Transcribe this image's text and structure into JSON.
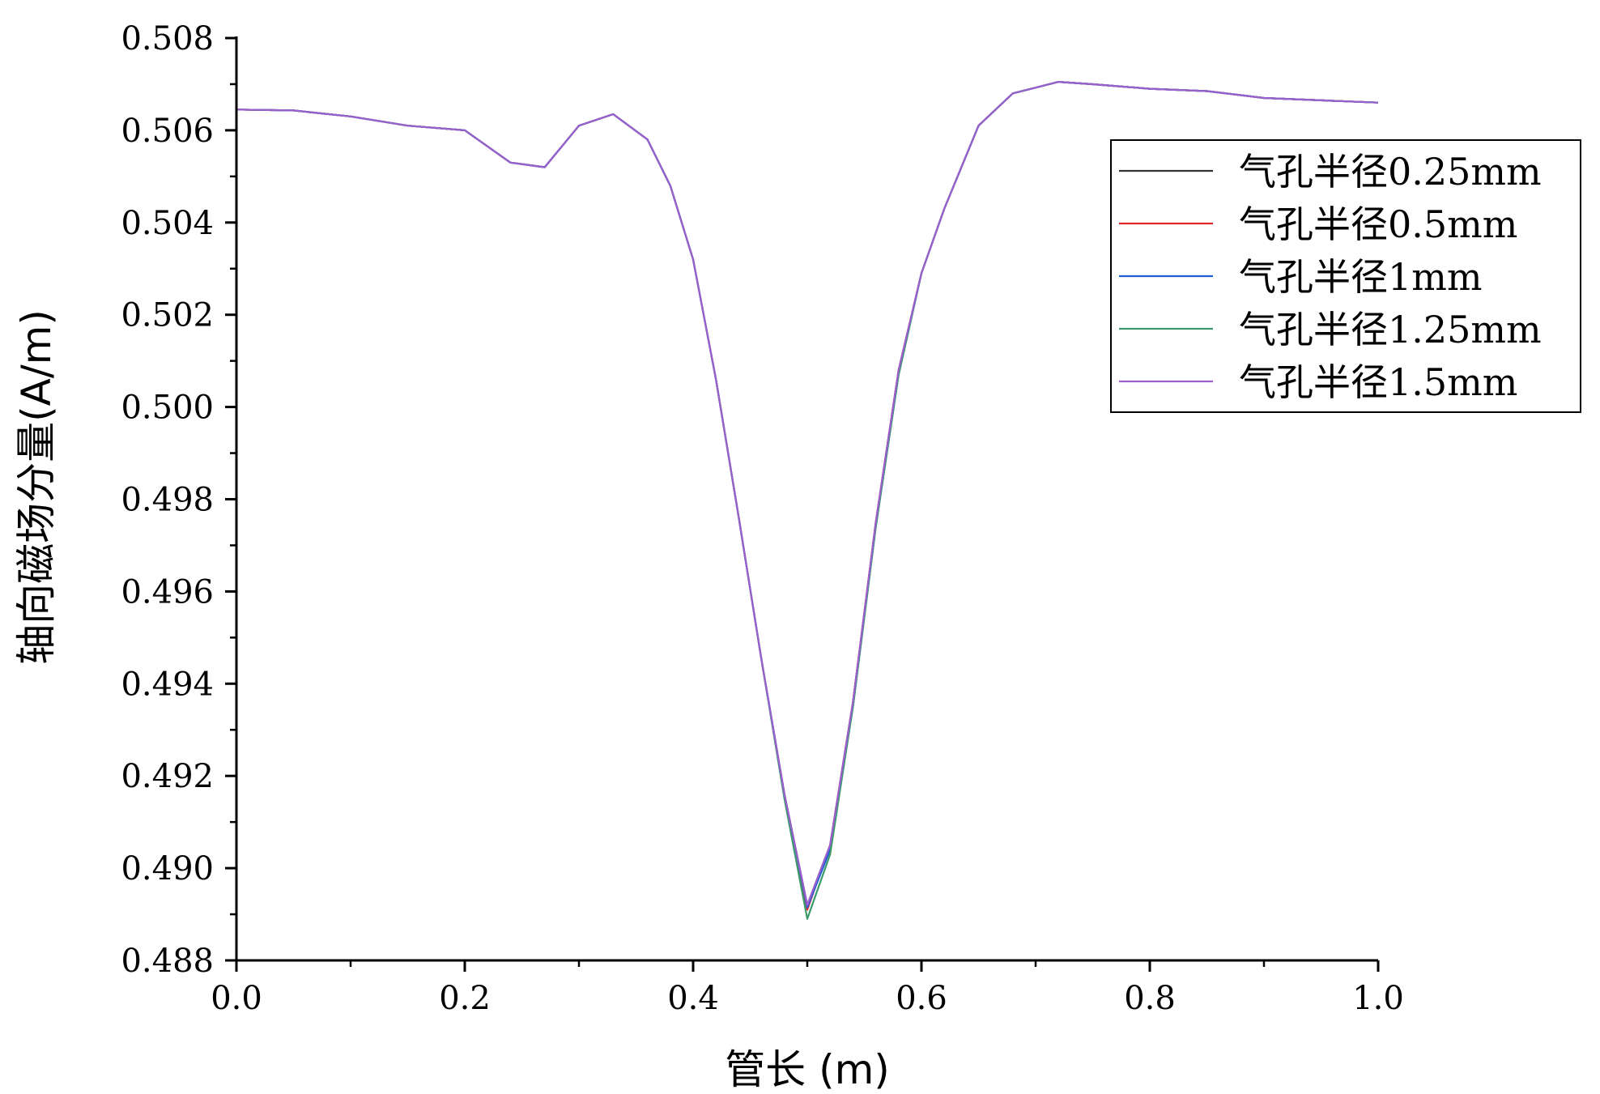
{
  "chart_data": {
    "type": "line",
    "xlabel": "管长 (m)",
    "ylabel": "轴向磁场分量(A/m)",
    "xlim": [
      0.0,
      1.0
    ],
    "ylim": [
      0.488,
      0.508
    ],
    "x_ticks": [
      "0.0",
      "0.2",
      "0.4",
      "0.6",
      "0.8",
      "1.0"
    ],
    "y_ticks": [
      "0.488",
      "0.490",
      "0.492",
      "0.494",
      "0.496",
      "0.498",
      "0.500",
      "0.502",
      "0.504",
      "0.506",
      "0.508"
    ],
    "legend_position": "top-right",
    "grid": false,
    "series": [
      {
        "name": "气孔半径0.25mm",
        "color": "#333333",
        "x": [
          0.0,
          0.05,
          0.1,
          0.15,
          0.2,
          0.24,
          0.27,
          0.3,
          0.33,
          0.36,
          0.38,
          0.4,
          0.42,
          0.44,
          0.46,
          0.48,
          0.5,
          0.52,
          0.54,
          0.56,
          0.58,
          0.6,
          0.62,
          0.65,
          0.68,
          0.72,
          0.75,
          0.8,
          0.85,
          0.9,
          0.95,
          1.0
        ],
        "y": [
          0.50645,
          0.50643,
          0.5063,
          0.5061,
          0.506,
          0.5053,
          0.5052,
          0.5061,
          0.50635,
          0.5058,
          0.5048,
          0.5032,
          0.5006,
          0.4976,
          0.4945,
          0.4916,
          0.4892,
          0.4905,
          0.4936,
          0.4975,
          0.5008,
          0.5029,
          0.5043,
          0.5061,
          0.5068,
          0.50705,
          0.507,
          0.5069,
          0.50685,
          0.5067,
          0.50665,
          0.5066
        ]
      },
      {
        "name": "气孔半径0.5mm",
        "color": "#e0262b",
        "x": [
          0.0,
          0.05,
          0.1,
          0.15,
          0.2,
          0.24,
          0.27,
          0.3,
          0.33,
          0.36,
          0.38,
          0.4,
          0.42,
          0.44,
          0.46,
          0.48,
          0.5,
          0.52,
          0.54,
          0.56,
          0.58,
          0.6,
          0.62,
          0.65,
          0.68,
          0.72,
          0.75,
          0.8,
          0.85,
          0.9,
          0.95,
          1.0
        ],
        "y": [
          0.50645,
          0.50643,
          0.5063,
          0.5061,
          0.506,
          0.5053,
          0.5052,
          0.5061,
          0.50635,
          0.5058,
          0.5048,
          0.5032,
          0.5006,
          0.4976,
          0.4945,
          0.4916,
          0.4891,
          0.4905,
          0.4936,
          0.4975,
          0.5008,
          0.5029,
          0.5043,
          0.5061,
          0.5068,
          0.50705,
          0.507,
          0.5069,
          0.50685,
          0.5067,
          0.50665,
          0.5066
        ]
      },
      {
        "name": "气孔半径1mm",
        "color": "#1f5fd6",
        "x": [
          0.0,
          0.05,
          0.1,
          0.15,
          0.2,
          0.24,
          0.27,
          0.3,
          0.33,
          0.36,
          0.38,
          0.4,
          0.42,
          0.44,
          0.46,
          0.48,
          0.5,
          0.52,
          0.54,
          0.56,
          0.58,
          0.6,
          0.62,
          0.65,
          0.68,
          0.72,
          0.75,
          0.8,
          0.85,
          0.9,
          0.95,
          1.0
        ],
        "y": [
          0.50645,
          0.50643,
          0.5063,
          0.5061,
          0.506,
          0.5053,
          0.5052,
          0.5061,
          0.50635,
          0.5058,
          0.5048,
          0.5032,
          0.5006,
          0.4976,
          0.4945,
          0.4916,
          0.48915,
          0.4904,
          0.4935,
          0.4974,
          0.5007,
          0.5029,
          0.5043,
          0.5061,
          0.5068,
          0.50705,
          0.507,
          0.5069,
          0.50685,
          0.5067,
          0.50665,
          0.5066
        ]
      },
      {
        "name": "气孔半径1.25mm",
        "color": "#3a9a6a",
        "x": [
          0.0,
          0.05,
          0.1,
          0.15,
          0.2,
          0.24,
          0.27,
          0.3,
          0.33,
          0.36,
          0.38,
          0.4,
          0.42,
          0.44,
          0.46,
          0.48,
          0.5,
          0.52,
          0.54,
          0.56,
          0.58,
          0.6,
          0.62,
          0.65,
          0.68,
          0.72,
          0.75,
          0.8,
          0.85,
          0.9,
          0.95,
          1.0
        ],
        "y": [
          0.50645,
          0.50643,
          0.5063,
          0.5061,
          0.506,
          0.5053,
          0.5052,
          0.5061,
          0.50635,
          0.5058,
          0.5048,
          0.5032,
          0.5006,
          0.4976,
          0.4945,
          0.4915,
          0.4889,
          0.4903,
          0.4935,
          0.4974,
          0.5007,
          0.5029,
          0.5043,
          0.5061,
          0.5068,
          0.50705,
          0.507,
          0.5069,
          0.50685,
          0.5067,
          0.50665,
          0.5066
        ]
      },
      {
        "name": "气孔半径1.5mm",
        "color": "#9a5fd0",
        "x": [
          0.0,
          0.05,
          0.1,
          0.15,
          0.2,
          0.24,
          0.27,
          0.3,
          0.33,
          0.36,
          0.38,
          0.4,
          0.42,
          0.44,
          0.46,
          0.48,
          0.5,
          0.52,
          0.54,
          0.56,
          0.58,
          0.6,
          0.62,
          0.65,
          0.68,
          0.72,
          0.75,
          0.8,
          0.85,
          0.9,
          0.95,
          1.0
        ],
        "y": [
          0.50645,
          0.50643,
          0.5063,
          0.5061,
          0.506,
          0.5053,
          0.5052,
          0.5061,
          0.50635,
          0.5058,
          0.5048,
          0.5032,
          0.5006,
          0.4976,
          0.4945,
          0.4916,
          0.4892,
          0.4905,
          0.4936,
          0.4975,
          0.5008,
          0.5029,
          0.5043,
          0.5061,
          0.5068,
          0.50705,
          0.507,
          0.5069,
          0.50685,
          0.5067,
          0.50665,
          0.5066
        ]
      }
    ]
  }
}
